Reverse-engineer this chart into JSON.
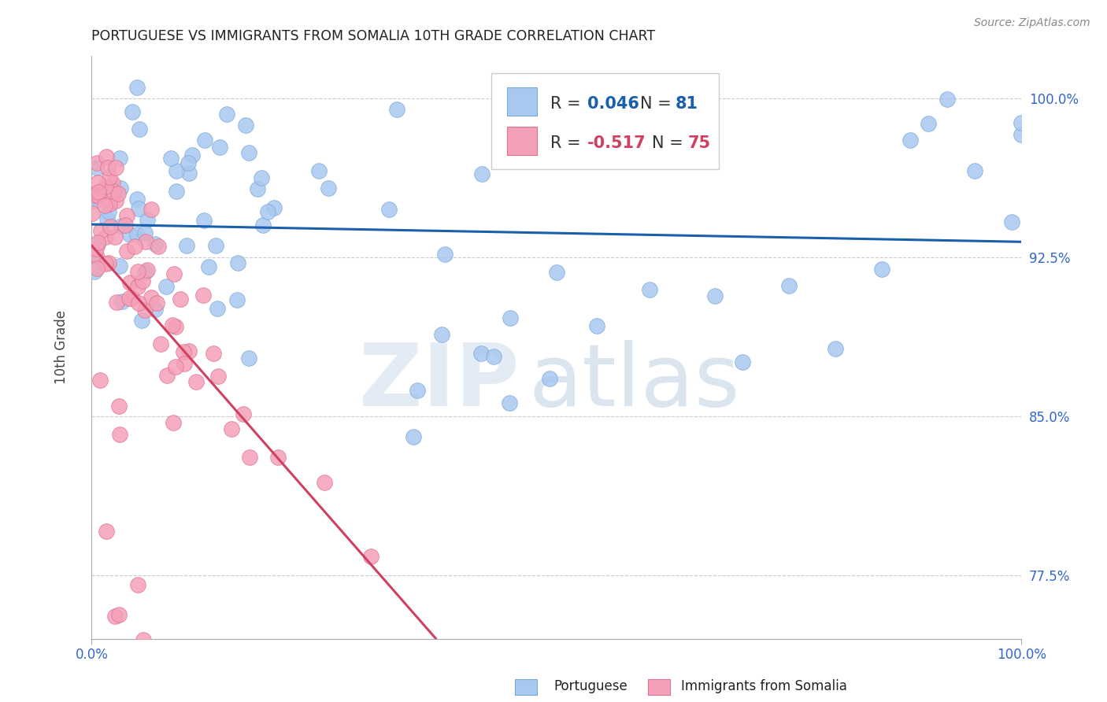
{
  "title": "PORTUGUESE VS IMMIGRANTS FROM SOMALIA 10TH GRADE CORRELATION CHART",
  "source": "Source: ZipAtlas.com",
  "ylabel": "10th Grade",
  "xlim": [
    0.0,
    1.0
  ],
  "ylim": [
    0.745,
    1.02
  ],
  "blue_color": "#A8C8F0",
  "blue_edge": "#7AAAD8",
  "pink_color": "#F4A0B8",
  "pink_edge": "#E07090",
  "trend_blue": "#1A5FAB",
  "trend_pink": "#D04060",
  "R_blue": 0.046,
  "N_blue": 81,
  "R_pink": -0.517,
  "N_pink": 75,
  "yright_ticks": [
    0.775,
    0.85,
    0.925,
    1.0
  ],
  "yright_labels": [
    "77.5%",
    "85.0%",
    "92.5%",
    "100.0%"
  ],
  "grid_color": "#CCCCCC",
  "bg_color": "#FFFFFF",
  "legend_text_color": "#1A5FAB",
  "pink_text_color": "#D04060",
  "watermark_zip_color": "#D8E4F0",
  "watermark_atlas_color": "#C8D8E8"
}
